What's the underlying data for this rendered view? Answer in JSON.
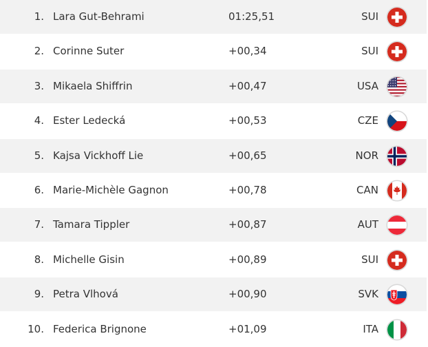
{
  "table": {
    "rows": [
      {
        "rank": "1.",
        "name": "Lara Gut-Behrami",
        "time": "01:25,51",
        "country": "SUI"
      },
      {
        "rank": "2.",
        "name": "Corinne Suter",
        "time": "+00,34",
        "country": "SUI"
      },
      {
        "rank": "3.",
        "name": "Mikaela Shiffrin",
        "time": "+00,47",
        "country": "USA"
      },
      {
        "rank": "4.",
        "name": "Ester Ledecká",
        "time": "+00,53",
        "country": "CZE"
      },
      {
        "rank": "5.",
        "name": "Kajsa Vickhoff Lie",
        "time": "+00,65",
        "country": "NOR"
      },
      {
        "rank": "6.",
        "name": "Marie-Michèle Gagnon",
        "time": "+00,78",
        "country": "CAN"
      },
      {
        "rank": "7.",
        "name": "Tamara Tippler",
        "time": "+00,87",
        "country": "AUT"
      },
      {
        "rank": "8.",
        "name": "Michelle Gisin",
        "time": "+00,89",
        "country": "SUI"
      },
      {
        "rank": "9.",
        "name": "Petra Vlhová",
        "time": "+00,90",
        "country": "SVK"
      },
      {
        "rank": "10.",
        "name": "Federica Brignone",
        "time": "+01,09",
        "country": "ITA"
      }
    ]
  }
}
